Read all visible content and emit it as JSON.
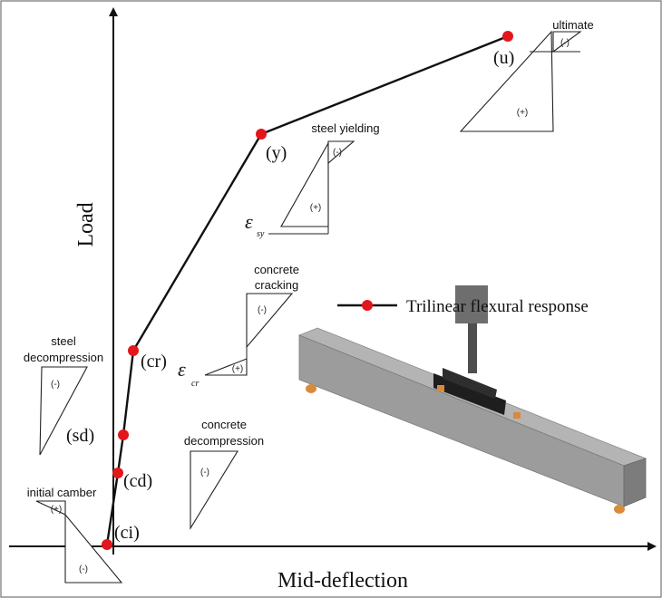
{
  "axes": {
    "x_label": "Mid-deflection",
    "y_label": "Load"
  },
  "legend": {
    "label": "Trilinear flexural response"
  },
  "points": {
    "ci": "(ci)",
    "cd": "(cd)",
    "sd": "(sd)",
    "cr": "(cr)",
    "y": "(y)",
    "u": "(u)"
  },
  "stages": {
    "initial_camber": "initial camber",
    "concrete_decompression_1": "concrete",
    "concrete_decompression_2": "decompression",
    "steel_decompression_1": "steel",
    "steel_decompression_2": "decompression",
    "concrete_cracking_1": "concrete",
    "concrete_cracking_2": "cracking",
    "steel_yielding": "steel yielding",
    "ultimate": "ultimate"
  },
  "signs": {
    "neg": "(-)",
    "pos": "(+)"
  },
  "strain_symbols": {
    "epsilon": "ε",
    "cr_sub": "cr",
    "sy_sub": "sy"
  },
  "colors": {
    "point": "#e3161b",
    "line": "#111111",
    "beam_top": "#b2b2b2",
    "beam_front": "#9a9a9a",
    "beam_end": "#7e7e7e",
    "support": "#d98a3a"
  }
}
